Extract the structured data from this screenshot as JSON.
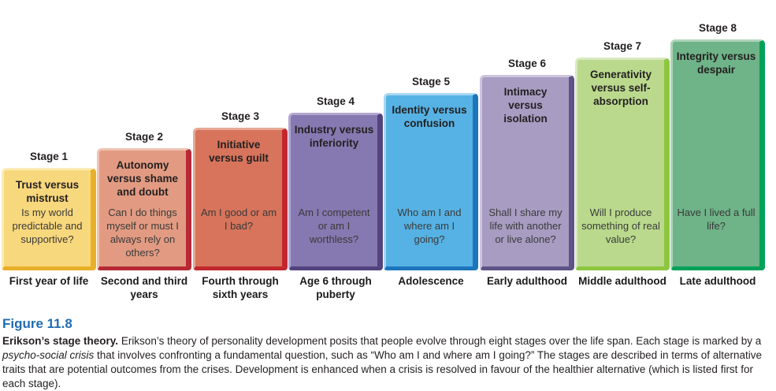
{
  "figure": {
    "stages": [
      {
        "label": "Stage 1",
        "title": "Trust versus mistrust",
        "question": "Is my world predictable and supportive?",
        "period": "First year of life",
        "colors": {
          "fill": "#F8D87C",
          "dark": "#E8AF28",
          "light": "#FCEBB5"
        }
      },
      {
        "label": "Stage 2",
        "title": "Autonomy versus shame and doubt",
        "question": "Can I do things myself or must I always rely on others?",
        "period": "Second and third years",
        "colors": {
          "fill": "#E29B82",
          "dark": "#B52A35",
          "light": "#EFC3B2"
        }
      },
      {
        "label": "Stage 3",
        "title": "Initiative versus guilt",
        "question": "Am I good or am I bad?",
        "period": "Fourth through sixth years",
        "colors": {
          "fill": "#D7745B",
          "dark": "#C1272D",
          "light": "#E5A893"
        }
      },
      {
        "label": "Stage 4",
        "title": "Industry versus inferiority",
        "question": "Am I competent or am I worthless?",
        "period": "Age 6 through puberty",
        "colors": {
          "fill": "#8678B0",
          "dark": "#52437E",
          "light": "#B3A8CE"
        }
      },
      {
        "label": "Stage 5",
        "title": "Identity versus confusion",
        "question": "Who am I and where am I going?",
        "period": "Adolescence",
        "colors": {
          "fill": "#56B2E4",
          "dark": "#1C75BC",
          "light": "#A8D7F2"
        }
      },
      {
        "label": "Stage 6",
        "title": "Intimacy versus isolation",
        "question": "Shall I share my life with another or live alone?",
        "period": "Early adulthood",
        "colors": {
          "fill": "#A89CC2",
          "dark": "#5D5386",
          "light": "#CCC5DD"
        }
      },
      {
        "label": "Stage 7",
        "title": "Generativity versus self-absorption",
        "question": "Will I produce something of real value?",
        "period": "Middle adulthood",
        "colors": {
          "fill": "#BAD98D",
          "dark": "#8DC63F",
          "light": "#D9EABF"
        }
      },
      {
        "label": "Stage 8",
        "title": "Integrity versus despair",
        "question": "Have I lived a full life?",
        "period": "Late adulthood",
        "colors": {
          "fill": "#6FB388",
          "dark": "#00A25A",
          "light": "#AED4BA"
        }
      }
    ],
    "caption": {
      "figure_label": "Figure 11.8",
      "label_color": "#1F6CB0",
      "body_runs": [
        {
          "style": "bold",
          "text": "Erikson’s stage theory. "
        },
        {
          "style": "normal",
          "text": "Erikson’s theory of personality development posits that people evolve through eight stages over the life span. Each stage is marked by a "
        },
        {
          "style": "italic",
          "text": "psycho-social crisis"
        },
        {
          "style": "normal",
          "text": " that involves confronting a fundamental question, such as “Who am I and where am I going?” The stages are described in terms of alternative traits that are potential outcomes from the crises. Development is enhanced when a crisis is resolved in favour of the healthier alternative (which is listed first for each stage)."
        }
      ]
    }
  }
}
